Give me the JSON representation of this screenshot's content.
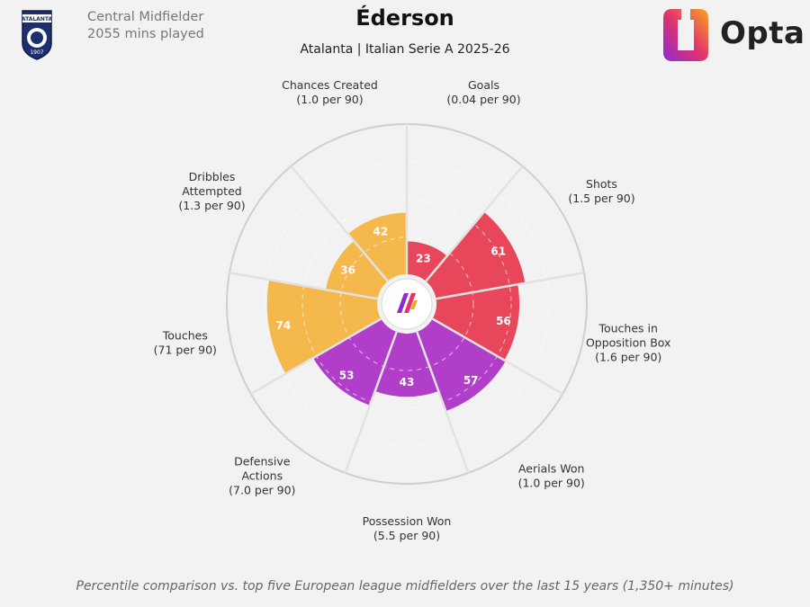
{
  "header": {
    "player_name": "Éderson",
    "team_competition": "Atalanta | Italian Serie A 2025-26",
    "position": "Central Midfielder",
    "minutes": "2055 mins played",
    "club_badge_text": "ATALANTA",
    "club_badge_year": "1907",
    "brand": "Opta"
  },
  "footnote": "Percentile comparison vs. top five European league midfielders over the last 15 years (1,350+ minutes)",
  "colors": {
    "attacking": "#e8475b",
    "defensive": "#b03ec8",
    "possession": "#f5b84d",
    "background": "#f2f2f2",
    "ring": "#cfcfcf"
  },
  "chart_data": {
    "type": "polar-bar",
    "scale": [
      0,
      100
    ],
    "grid": true,
    "categories": [
      {
        "name": [
          "Goals"
        ],
        "per90": "(0.04 per 90)",
        "percentile": 23,
        "group": "attacking"
      },
      {
        "name": [
          "Shots"
        ],
        "per90": "(1.5 per 90)",
        "percentile": 61,
        "group": "attacking"
      },
      {
        "name": [
          "Touches in",
          "Opposition Box"
        ],
        "per90": "(1.6 per 90)",
        "percentile": 56,
        "group": "attacking"
      },
      {
        "name": [
          "Aerials Won"
        ],
        "per90": "(1.0 per 90)",
        "percentile": 57,
        "group": "defensive"
      },
      {
        "name": [
          "Possession Won"
        ],
        "per90": "(5.5 per 90)",
        "percentile": 43,
        "group": "defensive"
      },
      {
        "name": [
          "Defensive",
          "Actions"
        ],
        "per90": "(7.0 per 90)",
        "percentile": 53,
        "group": "defensive"
      },
      {
        "name": [
          "Touches"
        ],
        "per90": "(71 per 90)",
        "percentile": 74,
        "group": "possession"
      },
      {
        "name": [
          "Dribbles",
          "Attempted"
        ],
        "per90": "(1.3 per 90)",
        "percentile": 36,
        "group": "possession"
      },
      {
        "name": [
          "Chances Created"
        ],
        "per90": "(1.0 per 90)",
        "percentile": 42,
        "group": "possession"
      }
    ]
  }
}
